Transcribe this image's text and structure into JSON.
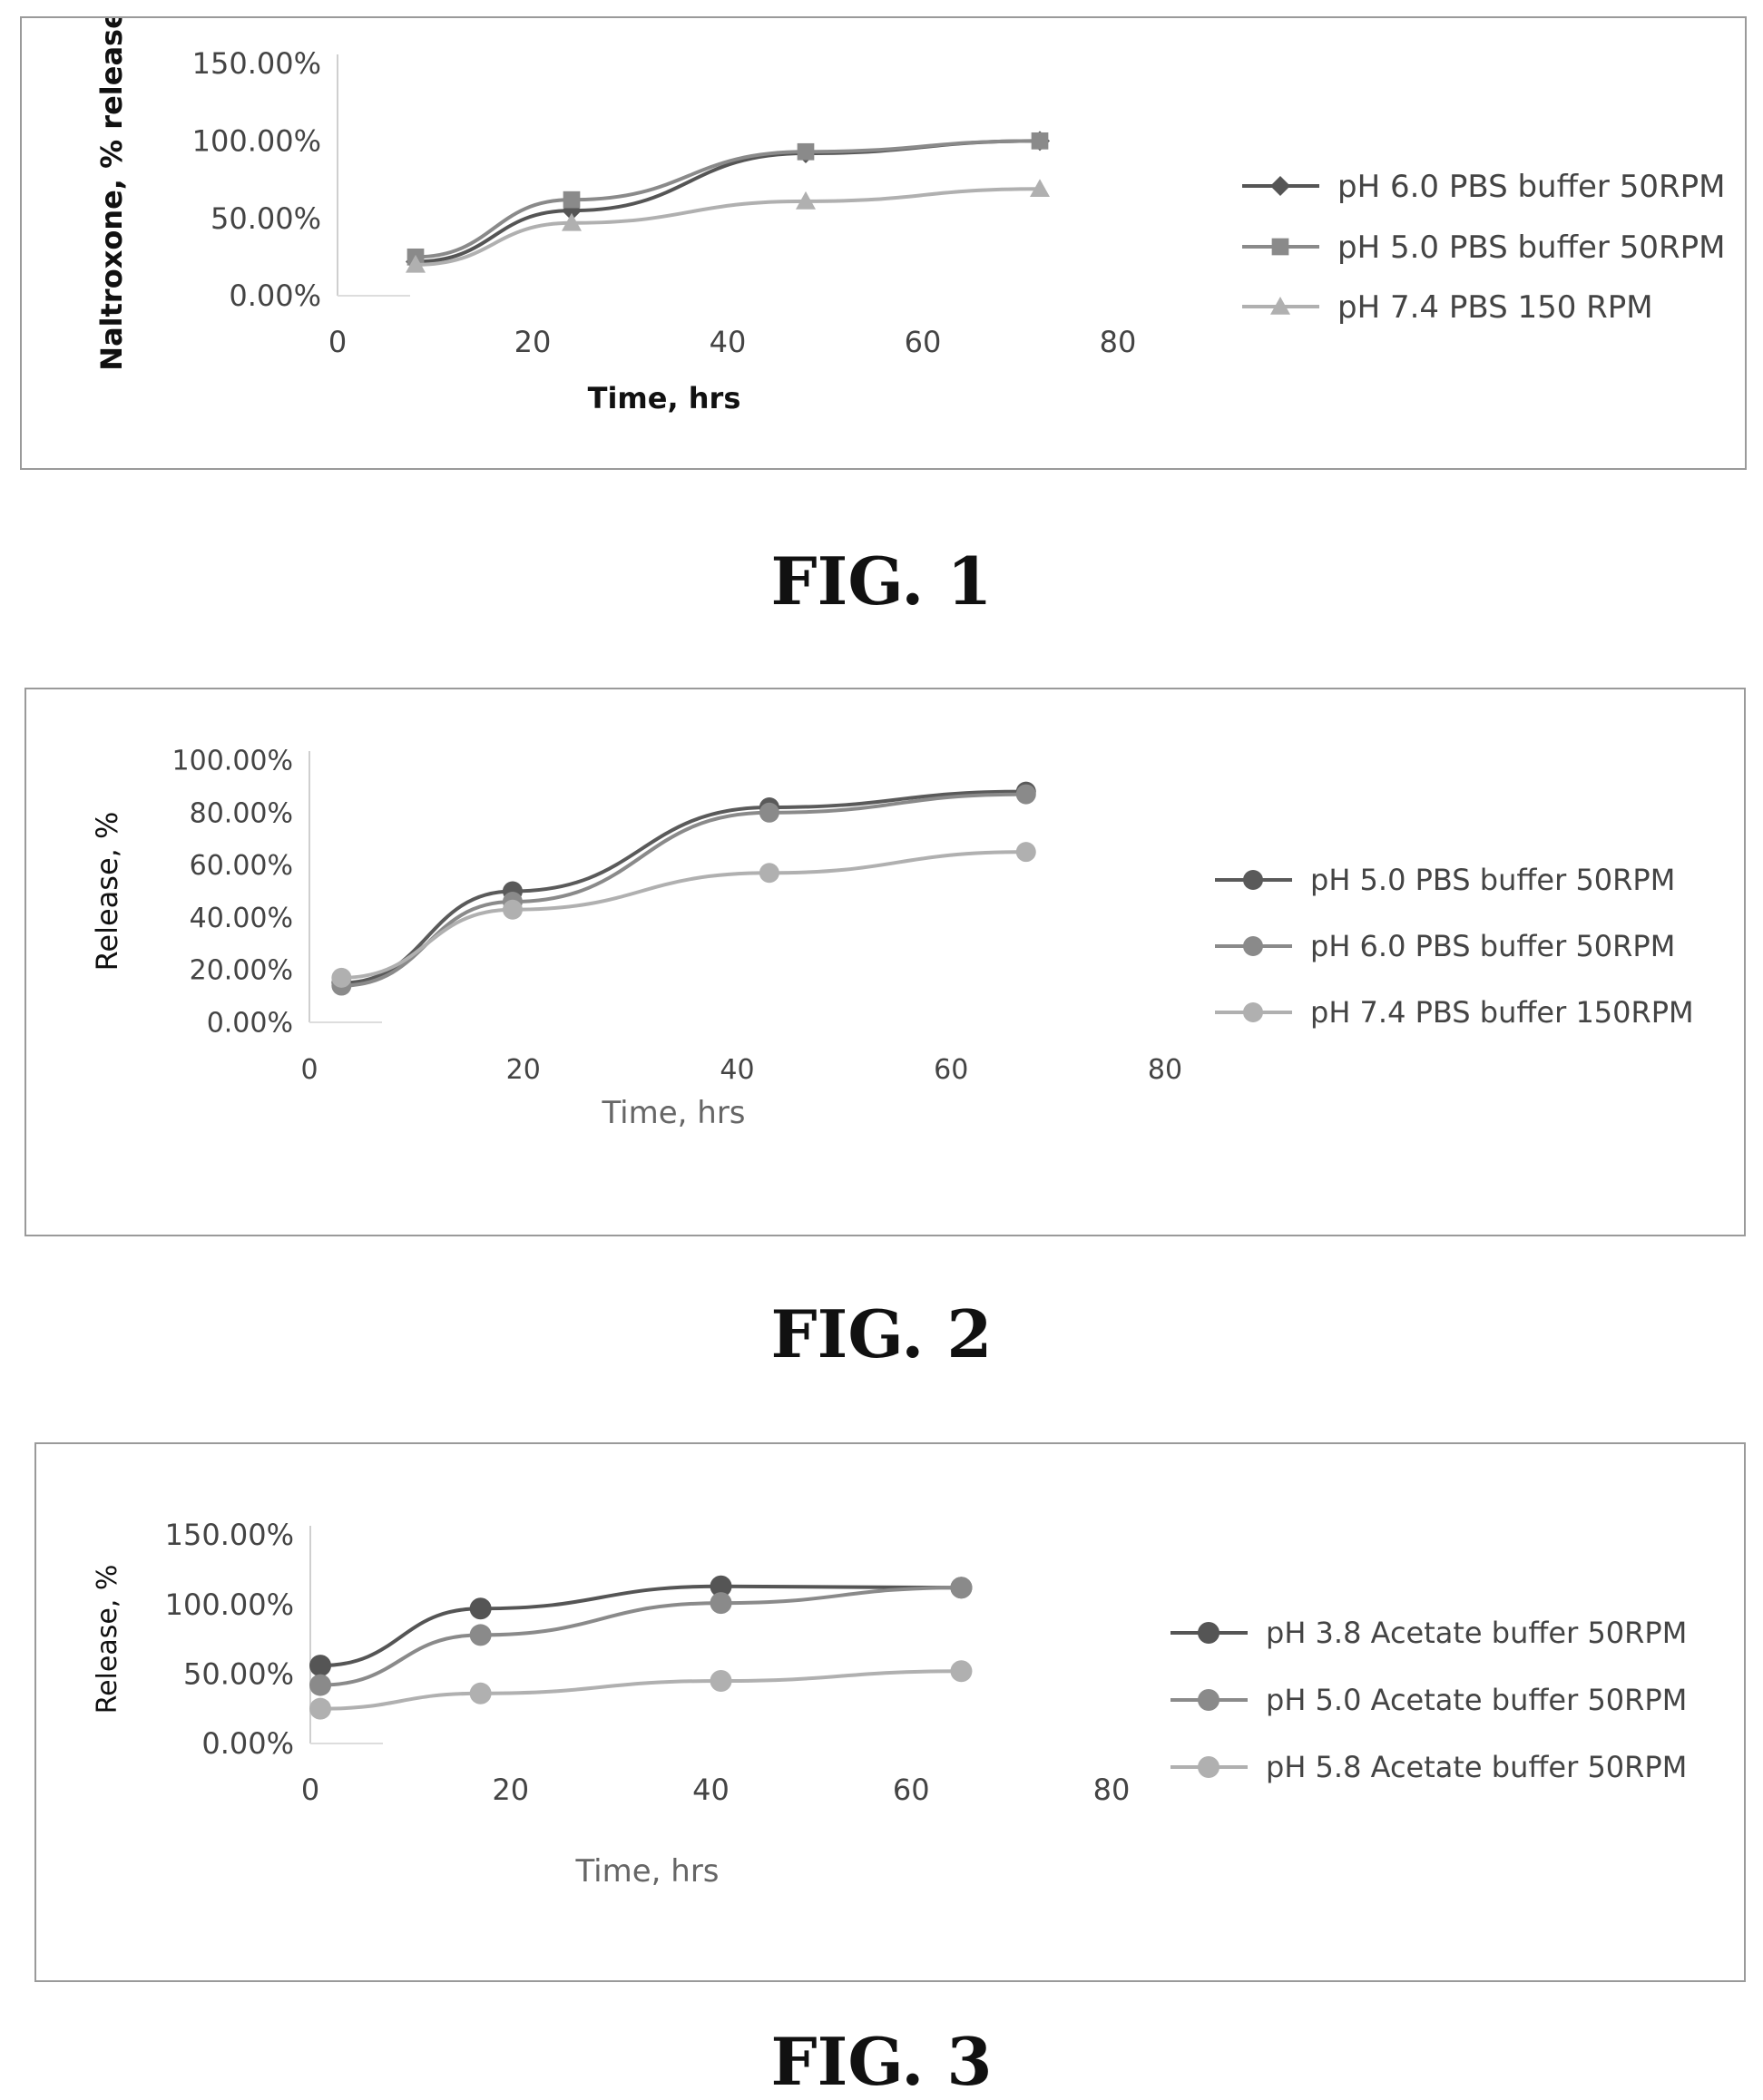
{
  "figures": [
    {
      "caption": "FIG. 1"
    },
    {
      "caption": "FIG. 2"
    },
    {
      "caption": "FIG. 3"
    }
  ],
  "chart_data": [
    {
      "type": "line",
      "title": "",
      "xlabel": "Time, hrs",
      "ylabel": "Naltroxone, % released",
      "xlim": [
        0,
        80
      ],
      "ylim": [
        0,
        1.5
      ],
      "x_ticks": [
        0,
        20,
        40,
        60,
        80
      ],
      "y_ticks": [
        0,
        0.5,
        1.0,
        1.5
      ],
      "x_tick_labels": [
        "0",
        "20",
        "40",
        "60",
        "80"
      ],
      "y_tick_labels": [
        "0.00%",
        "50.00%",
        "100.00%",
        "150.00%"
      ],
      "grid": false,
      "legend_position": "right",
      "series": [
        {
          "name": "pH 6.0 PBS buffer 50RPM",
          "marker": "diamond",
          "color": "#555555",
          "x": [
            8,
            24,
            48,
            72
          ],
          "y": [
            0.22,
            0.55,
            0.92,
            1.0
          ]
        },
        {
          "name": "pH 5.0 PBS buffer 50RPM",
          "marker": "square",
          "color": "#8a8a8a",
          "x": [
            8,
            24,
            48,
            72
          ],
          "y": [
            0.25,
            0.62,
            0.93,
            1.0
          ]
        },
        {
          "name": "pH 7.4 PBS 150 RPM",
          "marker": "triangle",
          "color": "#b0b0b0",
          "x": [
            8,
            24,
            48,
            72
          ],
          "y": [
            0.2,
            0.47,
            0.61,
            0.69
          ]
        }
      ]
    },
    {
      "type": "line",
      "title": "",
      "xlabel": "Time, hrs",
      "ylabel": "Release, %",
      "xlim": [
        0,
        80
      ],
      "ylim": [
        0,
        1.0
      ],
      "x_ticks": [
        0,
        20,
        40,
        60,
        80
      ],
      "y_ticks": [
        0,
        0.2,
        0.4,
        0.6,
        0.8,
        1.0
      ],
      "x_tick_labels": [
        "0",
        "20",
        "40",
        "60",
        "80"
      ],
      "y_tick_labels": [
        "0.00%",
        "20.00%",
        "40.00%",
        "60.00%",
        "80.00%",
        "100.00%"
      ],
      "grid": false,
      "legend_position": "right",
      "series": [
        {
          "name": "pH 5.0 PBS buffer 50RPM",
          "marker": "circle",
          "color": "#5a5a5a",
          "x": [
            3,
            19,
            43,
            67
          ],
          "y": [
            0.15,
            0.5,
            0.82,
            0.88
          ]
        },
        {
          "name": "pH 6.0 PBS buffer 50RPM",
          "marker": "circle",
          "color": "#8a8a8a",
          "x": [
            3,
            19,
            43,
            67
          ],
          "y": [
            0.14,
            0.46,
            0.8,
            0.87
          ]
        },
        {
          "name": "pH 7.4 PBS buffer 150RPM",
          "marker": "circle",
          "color": "#b0b0b0",
          "x": [
            3,
            19,
            43,
            67
          ],
          "y": [
            0.17,
            0.43,
            0.57,
            0.65
          ]
        }
      ]
    },
    {
      "type": "line",
      "title": "",
      "xlabel": "Time, hrs",
      "ylabel": "Release, %",
      "xlim": [
        0,
        80
      ],
      "ylim": [
        0,
        1.5
      ],
      "x_ticks": [
        0,
        20,
        40,
        60,
        80
      ],
      "y_ticks": [
        0,
        0.5,
        1.0,
        1.5
      ],
      "x_tick_labels": [
        "0",
        "20",
        "40",
        "60",
        "80"
      ],
      "y_tick_labels": [
        "0.00%",
        "50.00%",
        "100.00%",
        "150.00%"
      ],
      "grid": false,
      "legend_position": "right",
      "series": [
        {
          "name": "pH 3.8 Acetate buffer 50RPM",
          "marker": "circle",
          "color": "#555555",
          "x": [
            1,
            17,
            41,
            65
          ],
          "y": [
            0.56,
            0.97,
            1.13,
            1.12
          ]
        },
        {
          "name": "pH 5.0 Acetate buffer 50RPM",
          "marker": "circle",
          "color": "#8a8a8a",
          "x": [
            1,
            17,
            41,
            65
          ],
          "y": [
            0.42,
            0.78,
            1.01,
            1.12
          ]
        },
        {
          "name": "pH 5.8 Acetate buffer 50RPM",
          "marker": "circle",
          "color": "#b0b0b0",
          "x": [
            1,
            17,
            41,
            65
          ],
          "y": [
            0.25,
            0.36,
            0.45,
            0.52
          ]
        }
      ]
    }
  ]
}
